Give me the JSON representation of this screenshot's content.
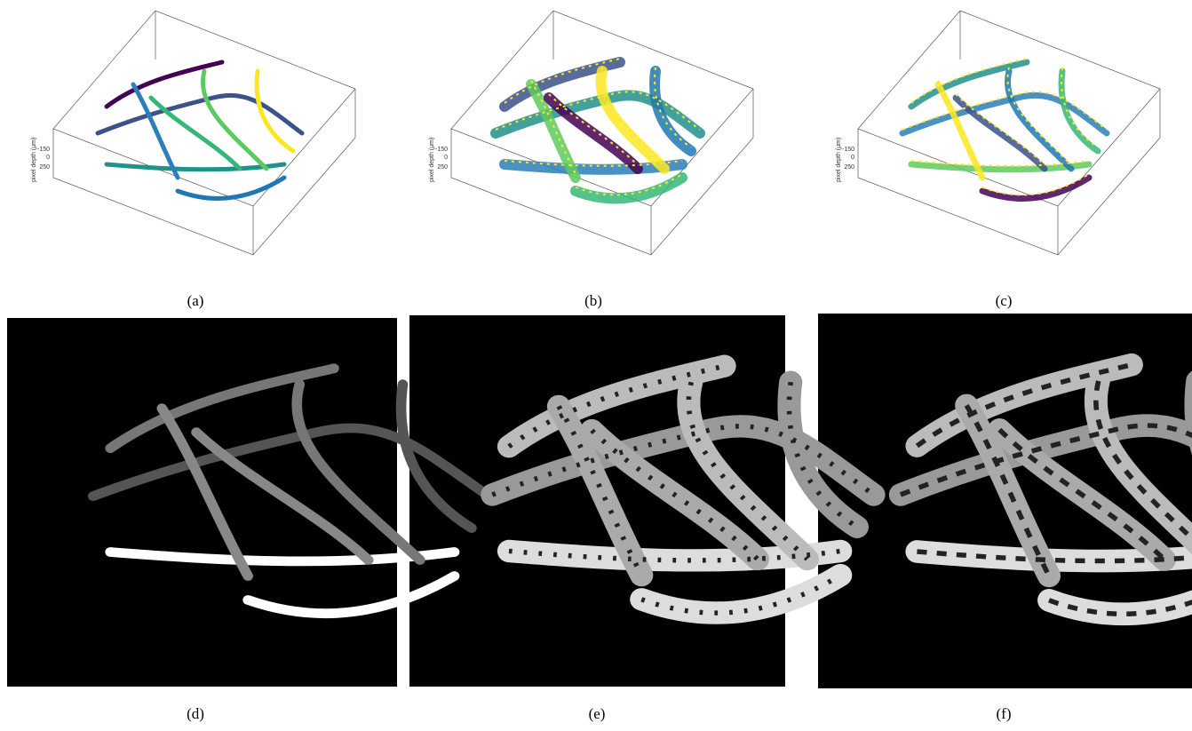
{
  "panels": [
    {
      "caption": "(a)",
      "axis_label": "pixel depth (μm)",
      "ticks": [
        -150,
        0,
        250
      ]
    },
    {
      "caption": "(b)",
      "axis_label": "pixel depth (μm)",
      "ticks": [
        -150,
        0,
        250
      ]
    },
    {
      "caption": "(c)",
      "axis_label": "pixel depth (μm)",
      "ticks": [
        -150,
        0,
        250
      ]
    },
    {
      "caption": "(d)"
    },
    {
      "caption": "(e)"
    },
    {
      "caption": "(f)"
    }
  ]
}
